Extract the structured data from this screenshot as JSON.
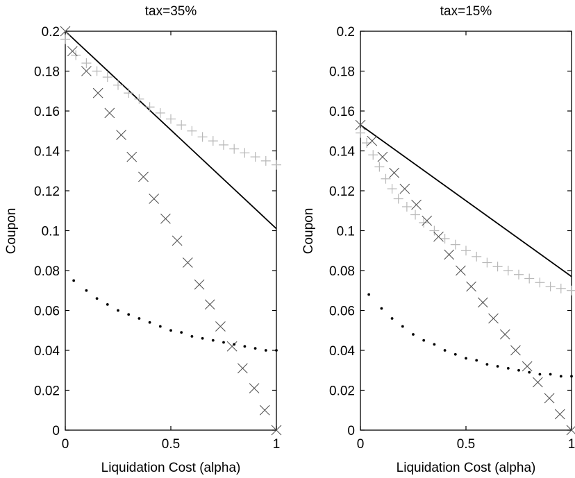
{
  "chart_data": [
    {
      "type": "line",
      "title": "tax=35%",
      "xlabel": "Liquidation Cost (alpha)",
      "ylabel": "Coupon",
      "xlim": [
        0,
        1
      ],
      "ylim": [
        0,
        0.2
      ],
      "xticks": [
        "0",
        "0.5",
        "1"
      ],
      "yticks": [
        "0",
        "0.02",
        "0.04",
        "0.06",
        "0.08",
        "0.1",
        "0.12",
        "0.14",
        "0.16",
        "0.18",
        "0.2"
      ],
      "grid": false,
      "series": [
        {
          "style": "solid",
          "x": [
            0,
            1
          ],
          "y": [
            0.2,
            0.101
          ]
        },
        {
          "style": "plus",
          "x": [
            0,
            0.05,
            0.1,
            0.15,
            0.2,
            0.25,
            0.3,
            0.35,
            0.4,
            0.45,
            0.5,
            0.55,
            0.6,
            0.65,
            0.7,
            0.75,
            0.8,
            0.85,
            0.9,
            0.95,
            1.0
          ],
          "y": [
            0.196,
            0.188,
            0.184,
            0.18,
            0.177,
            0.173,
            0.169,
            0.166,
            0.162,
            0.159,
            0.156,
            0.153,
            0.15,
            0.147,
            0.145,
            0.143,
            0.141,
            0.139,
            0.137,
            0.135,
            0.133
          ]
        },
        {
          "style": "x",
          "x": [
            0,
            0.034,
            0.1,
            0.155,
            0.21,
            0.265,
            0.315,
            0.37,
            0.42,
            0.475,
            0.53,
            0.58,
            0.635,
            0.685,
            0.735,
            0.79,
            0.84,
            0.895,
            0.945,
            1.0
          ],
          "y": [
            0.2,
            0.19,
            0.18,
            0.169,
            0.159,
            0.148,
            0.137,
            0.127,
            0.116,
            0.106,
            0.095,
            0.084,
            0.073,
            0.063,
            0.052,
            0.042,
            0.031,
            0.021,
            0.01,
            0.0
          ]
        },
        {
          "style": "dotted",
          "x": [
            0.04,
            0.1,
            0.15,
            0.2,
            0.25,
            0.3,
            0.35,
            0.4,
            0.45,
            0.5,
            0.55,
            0.6,
            0.65,
            0.7,
            0.75,
            0.8,
            0.85,
            0.9,
            0.95,
            1.0
          ],
          "y": [
            0.075,
            0.07,
            0.066,
            0.063,
            0.06,
            0.058,
            0.056,
            0.054,
            0.052,
            0.05,
            0.049,
            0.047,
            0.046,
            0.045,
            0.044,
            0.043,
            0.042,
            0.041,
            0.04,
            0.04
          ]
        }
      ]
    },
    {
      "type": "line",
      "title": "tax=15%",
      "xlabel": "Liquidation Cost (alpha)",
      "ylabel": "Coupon",
      "xlim": [
        0,
        1
      ],
      "ylim": [
        0,
        0.2
      ],
      "xticks": [
        "0",
        "0.5",
        "1"
      ],
      "yticks": [
        "0",
        "0.02",
        "0.04",
        "0.06",
        "0.08",
        "0.1",
        "0.12",
        "0.14",
        "0.16",
        "0.18",
        "0.2"
      ],
      "grid": false,
      "series": [
        {
          "style": "solid",
          "x": [
            0,
            1
          ],
          "y": [
            0.153,
            0.077
          ]
        },
        {
          "style": "plus",
          "x": [
            0.0,
            0.03,
            0.06,
            0.09,
            0.12,
            0.15,
            0.18,
            0.22,
            0.26,
            0.3,
            0.35,
            0.4,
            0.45,
            0.5,
            0.55,
            0.6,
            0.65,
            0.7,
            0.75,
            0.8,
            0.85,
            0.9,
            0.95,
            1.0
          ],
          "y": [
            0.149,
            0.144,
            0.138,
            0.132,
            0.126,
            0.121,
            0.116,
            0.112,
            0.108,
            0.104,
            0.1,
            0.096,
            0.093,
            0.09,
            0.087,
            0.084,
            0.082,
            0.08,
            0.078,
            0.076,
            0.074,
            0.072,
            0.071,
            0.07
          ]
        },
        {
          "style": "x",
          "x": [
            0,
            0.055,
            0.105,
            0.16,
            0.21,
            0.265,
            0.315,
            0.37,
            0.42,
            0.475,
            0.525,
            0.58,
            0.63,
            0.685,
            0.735,
            0.79,
            0.84,
            0.895,
            0.945,
            1.0
          ],
          "y": [
            0.153,
            0.145,
            0.137,
            0.129,
            0.121,
            0.113,
            0.105,
            0.097,
            0.088,
            0.08,
            0.072,
            0.064,
            0.056,
            0.048,
            0.04,
            0.032,
            0.024,
            0.016,
            0.008,
            0.0
          ]
        },
        {
          "style": "dotted",
          "x": [
            0.04,
            0.1,
            0.15,
            0.2,
            0.25,
            0.3,
            0.35,
            0.4,
            0.45,
            0.5,
            0.55,
            0.6,
            0.65,
            0.7,
            0.75,
            0.8,
            0.85,
            0.9,
            0.95,
            1.0
          ],
          "y": [
            0.068,
            0.061,
            0.056,
            0.052,
            0.048,
            0.045,
            0.043,
            0.04,
            0.038,
            0.036,
            0.035,
            0.033,
            0.032,
            0.031,
            0.03,
            0.029,
            0.028,
            0.028,
            0.027,
            0.027
          ]
        }
      ]
    }
  ]
}
